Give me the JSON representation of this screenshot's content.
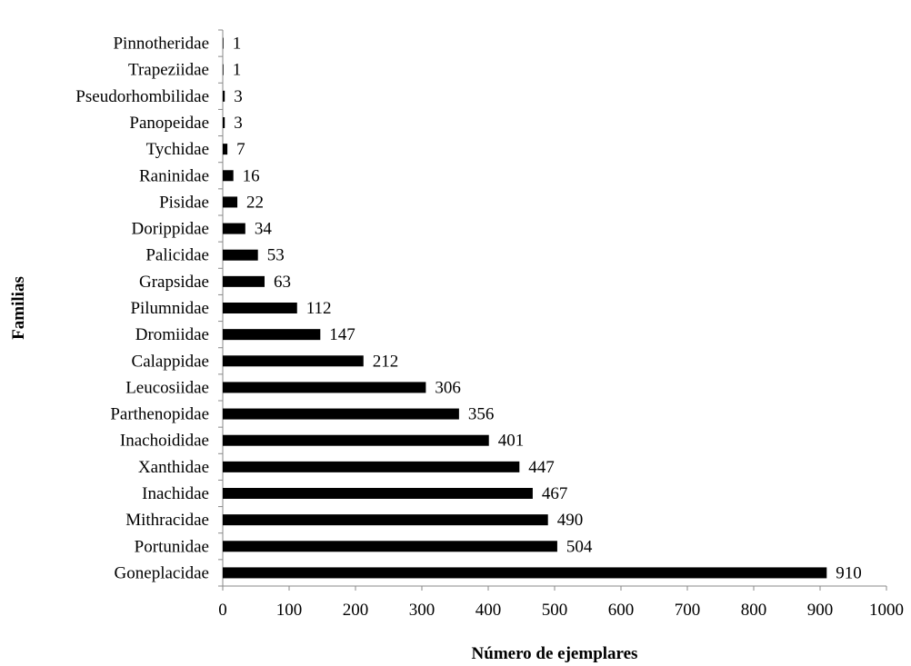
{
  "chart_data": {
    "type": "bar",
    "orientation": "horizontal",
    "categories": [
      "Goneplacidae",
      "Portunidae",
      "Mithracidae",
      "Inachidae",
      "Xanthidae",
      "Inachoididae",
      "Parthenopidae",
      "Leucosiidae",
      "Calappidae",
      "Dromiidae",
      "Pilumnidae",
      "Grapsidae",
      "Palicidae",
      "Dorippidae",
      "Pisidae",
      "Raninidae",
      "Tychidae",
      "Panopeidae",
      "Pseudorhombilidae",
      "Trapeziidae",
      "Pinnotheridae"
    ],
    "values": [
      910,
      504,
      490,
      467,
      447,
      401,
      356,
      306,
      212,
      147,
      112,
      63,
      53,
      34,
      22,
      16,
      7,
      3,
      3,
      1,
      1
    ],
    "data_labels": [
      "910",
      "504",
      "490",
      "467",
      "447",
      "401",
      "356",
      "306",
      "212",
      "147",
      "112",
      "63",
      "53",
      "34",
      "22",
      "16",
      "7",
      "3",
      "3",
      "1",
      "1"
    ],
    "xlabel": "Número de ejemplares",
    "ylabel": "Familias",
    "xlim": [
      0,
      1000
    ],
    "x_ticks": [
      "0",
      "100",
      "200",
      "300",
      "400",
      "500",
      "600",
      "700",
      "800",
      "900",
      "1000"
    ],
    "grid": false,
    "legend": "none",
    "bar_color": "#000000"
  }
}
